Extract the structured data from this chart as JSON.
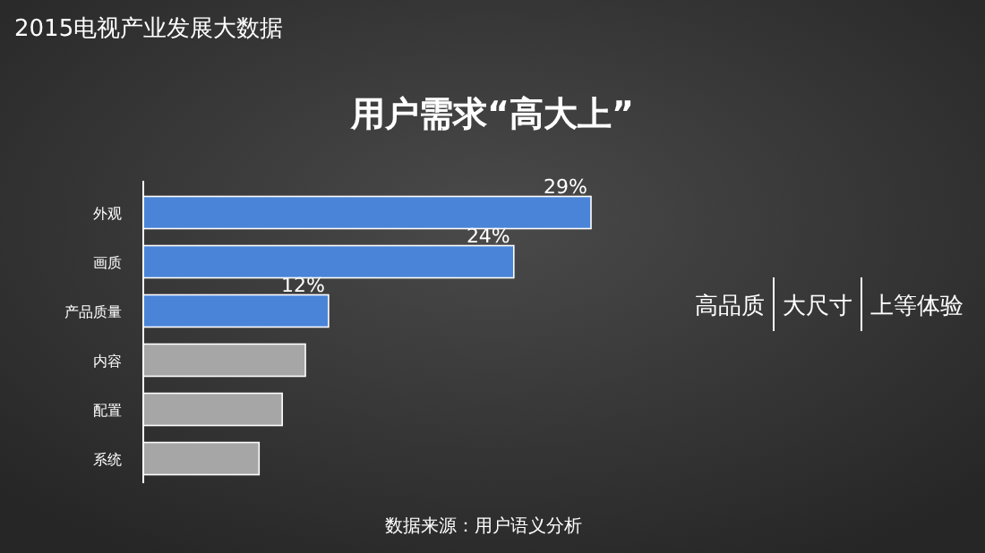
{
  "chart_data": {
    "type": "bar",
    "orientation": "horizontal",
    "title": "2015电视产业发展大数据",
    "subtitle": "用户需求“高大上”",
    "categories": [
      "外观",
      "画质",
      "产品质量",
      "内容",
      "配置",
      "系统"
    ],
    "values": [
      29,
      24,
      12,
      10.5,
      9,
      7.5
    ],
    "value_labels": [
      "29%",
      "24%",
      "12%",
      null,
      null,
      null
    ],
    "colors": [
      "#4a84d8",
      "#4a84d8",
      "#4a84d8",
      "#a6a6a6",
      "#a6a6a6",
      "#a6a6a6"
    ],
    "annotations": [
      "高品质",
      "大尺寸",
      "上等体验",
      "数据来源：用户语义分析"
    ]
  }
}
